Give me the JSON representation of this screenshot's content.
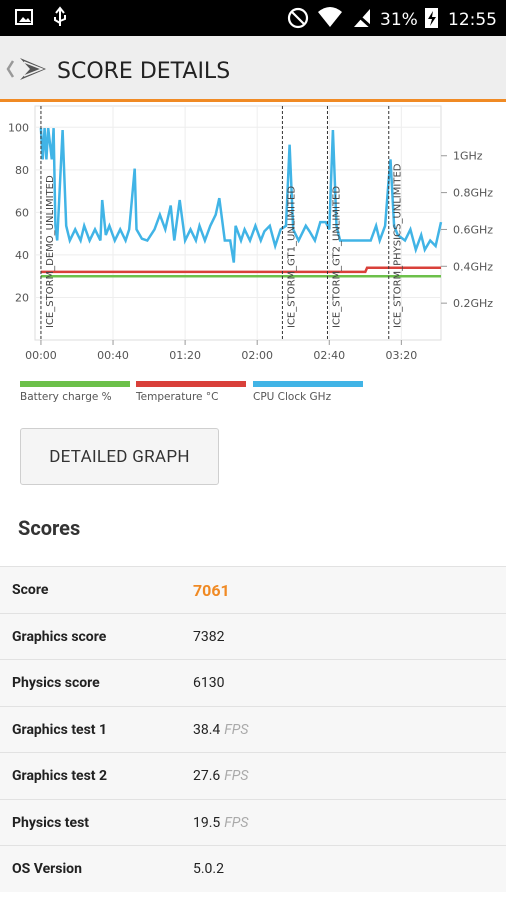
{
  "status_bar": {
    "battery": "31%",
    "time": "12:55"
  },
  "app_bar": {
    "title": "SCORE DETAILS"
  },
  "chart": {
    "type": "line",
    "xlim": [
      -3.3,
      222
    ],
    "xticks": [
      {
        "value": 0,
        "label": "00:00"
      },
      {
        "value": 40,
        "label": "00:40"
      },
      {
        "value": 80,
        "label": "01:20"
      },
      {
        "value": 120,
        "label": "02:00"
      },
      {
        "value": 160,
        "label": "02:40"
      },
      {
        "value": 200,
        "label": "03:20"
      }
    ],
    "ylim": [
      0,
      110
    ],
    "yticks": [
      20,
      40,
      60,
      80,
      100
    ],
    "y2lim": [
      0,
      1.27
    ],
    "y2ticks": [
      {
        "value": 0.2,
        "label": "0.2GHz"
      },
      {
        "value": 0.4,
        "label": "0.4GHz"
      },
      {
        "value": 0.6,
        "label": "0.6GHz"
      },
      {
        "value": 0.8,
        "label": "0.8GHz"
      },
      {
        "value": 1,
        "label": "1GHz"
      }
    ],
    "grid": true,
    "markers": [
      {
        "x": 0,
        "label": "ICE_STORM_DEMO_UNLIMITED"
      },
      {
        "x": 134,
        "label": "ICE_STORM_GT1_UNLIMITED"
      },
      {
        "x": 159,
        "label": "ICE_STORM_GT2_UNLIMITED"
      },
      {
        "x": 193,
        "label": "ICE_STORM_PHYSICS_UNLIMITED"
      }
    ],
    "series": [
      {
        "name": "Battery charge %",
        "color": "#6cc04a",
        "x": [
          0,
          222
        ],
        "values": [
          30,
          30
        ]
      },
      {
        "name": "Temperature °C",
        "color": "#d9403a",
        "x": [
          0,
          180,
          181,
          222
        ],
        "values": [
          32,
          32,
          34,
          34
        ]
      },
      {
        "name": "CPU Clock GHz",
        "color": "#41b4e6",
        "axis": "y2",
        "x": [
          0,
          1,
          2,
          3,
          4,
          6,
          7,
          8,
          9,
          12,
          14,
          16,
          19,
          22,
          24,
          27,
          30,
          33,
          34,
          36,
          38,
          41,
          44,
          47,
          49,
          52,
          53,
          56,
          59,
          63,
          66,
          69,
          72,
          74,
          77,
          80,
          83,
          86,
          88,
          91,
          94,
          97,
          99,
          102,
          105,
          107,
          108,
          111,
          113,
          116,
          119,
          122,
          124,
          127,
          130,
          133,
          136,
          138,
          140,
          143,
          147,
          149,
          152,
          155,
          158,
          160,
          162,
          164,
          166,
          172,
          177,
          183,
          186,
          188,
          191,
          193,
          194,
          196,
          198,
          202,
          205,
          208,
          211,
          213,
          216,
          219,
          222
        ],
        "values": [
          1.15,
          0.98,
          1.15,
          0.98,
          1.15,
          0.98,
          1.15,
          0.62,
          0.54,
          1.14,
          0.62,
          0.54,
          0.6,
          0.54,
          0.62,
          0.54,
          0.6,
          0.54,
          0.76,
          0.57,
          0.62,
          0.54,
          0.6,
          0.54,
          0.6,
          0.93,
          0.6,
          0.55,
          0.54,
          0.6,
          0.68,
          0.6,
          0.73,
          0.54,
          0.76,
          0.54,
          0.6,
          0.54,
          0.62,
          0.54,
          0.62,
          0.68,
          0.77,
          0.54,
          0.54,
          0.42,
          0.62,
          0.54,
          0.6,
          0.54,
          0.62,
          0.54,
          0.59,
          0.62,
          0.51,
          0.6,
          0.62,
          1.06,
          0.6,
          0.54,
          0.62,
          0.59,
          0.54,
          0.64,
          0.64,
          0.6,
          1.14,
          0.62,
          0.54,
          0.54,
          0.54,
          0.54,
          0.62,
          0.54,
          0.62,
          0.87,
          0.98,
          0.62,
          0.57,
          0.54,
          0.6,
          0.49,
          0.57,
          0.49,
          0.54,
          0.51,
          0.64
        ]
      }
    ]
  },
  "button": {
    "label": "DETAILED GRAPH"
  },
  "scores": {
    "title": "Scores",
    "rows": [
      {
        "label": "Score",
        "value": "7061"
      },
      {
        "label": "Graphics score",
        "value": "7382"
      },
      {
        "label": "Physics score",
        "value": "6130"
      },
      {
        "label": "Graphics test 1",
        "value": "38.4",
        "unit": "FPS"
      },
      {
        "label": "Graphics test 2",
        "value": "27.6",
        "unit": "FPS"
      },
      {
        "label": "Physics test",
        "value": "19.5",
        "unit": "FPS"
      },
      {
        "label": "OS Version",
        "value": "5.0.2"
      }
    ]
  }
}
